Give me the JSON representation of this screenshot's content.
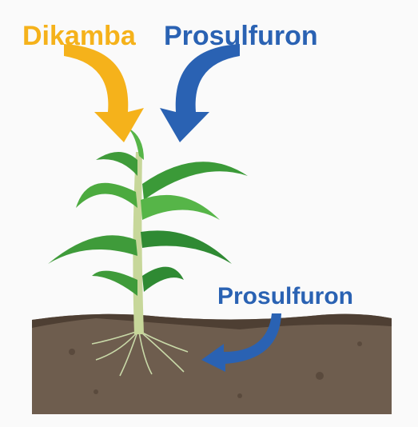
{
  "labels": {
    "top_left": "Dikamba",
    "top_right": "Prosulfuron",
    "soil": "Prosulfuron"
  }
}
